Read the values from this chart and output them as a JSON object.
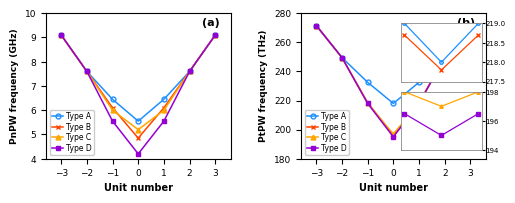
{
  "x": [
    -3,
    -2,
    -1,
    0,
    1,
    2,
    3
  ],
  "panel_a": {
    "title": "(a)",
    "ylabel": "PnPW frequency (GHz)",
    "xlabel": "Unit number",
    "ylim": [
      4,
      10
    ],
    "yticks": [
      4,
      5,
      6,
      7,
      8,
      9,
      10
    ],
    "typeA": [
      9.1,
      7.6,
      6.45,
      5.55,
      6.45,
      7.6,
      9.1
    ],
    "typeB": [
      9.1,
      7.6,
      6.1,
      4.85,
      6.1,
      7.6,
      9.1
    ],
    "typeC": [
      9.1,
      7.6,
      6.0,
      5.2,
      6.0,
      7.6,
      9.1
    ],
    "typeD": [
      9.1,
      7.6,
      5.55,
      4.2,
      5.55,
      7.6,
      9.1
    ],
    "legend_loc": "lower center"
  },
  "panel_b": {
    "title": "(b)",
    "ylabel": "PtPW frequency (THz)",
    "xlabel": "Unit number",
    "ylim": [
      180,
      280
    ],
    "yticks": [
      180,
      200,
      220,
      240,
      260,
      280
    ],
    "typeA": [
      271.5,
      249.5,
      232.5,
      218.0,
      232.5,
      249.5,
      271.5
    ],
    "typeB": [
      271.5,
      249.5,
      218.5,
      196.0,
      218.5,
      249.5,
      271.5
    ],
    "typeC": [
      271.5,
      249.5,
      218.0,
      197.0,
      218.0,
      249.5,
      271.5
    ],
    "typeD": [
      271.5,
      249.5,
      218.0,
      195.0,
      218.0,
      249.5,
      271.5
    ],
    "legend_loc": "lower center"
  },
  "inset_top": {
    "x": [
      -1,
      0,
      1
    ],
    "ylim": [
      217.5,
      219.0
    ],
    "yticks": [
      217.5,
      218.0,
      218.5,
      219.0
    ],
    "typeA": [
      219.0,
      218.0,
      219.0
    ],
    "typeB": [
      218.7,
      217.8,
      218.7
    ]
  },
  "inset_bot": {
    "x": [
      -1,
      0,
      1
    ],
    "ylim": [
      194.0,
      198.0
    ],
    "yticks": [
      194,
      196,
      198
    ],
    "typeC": [
      198.0,
      197.0,
      198.0
    ],
    "typeD": [
      196.5,
      195.0,
      196.5
    ]
  },
  "colors": {
    "typeA": "#1E90FF",
    "typeB": "#FF4500",
    "typeC": "#FFA500",
    "typeD": "#9400D3"
  },
  "markers": {
    "typeA": "o",
    "typeB": "x",
    "typeC": "^",
    "typeD": "s"
  }
}
